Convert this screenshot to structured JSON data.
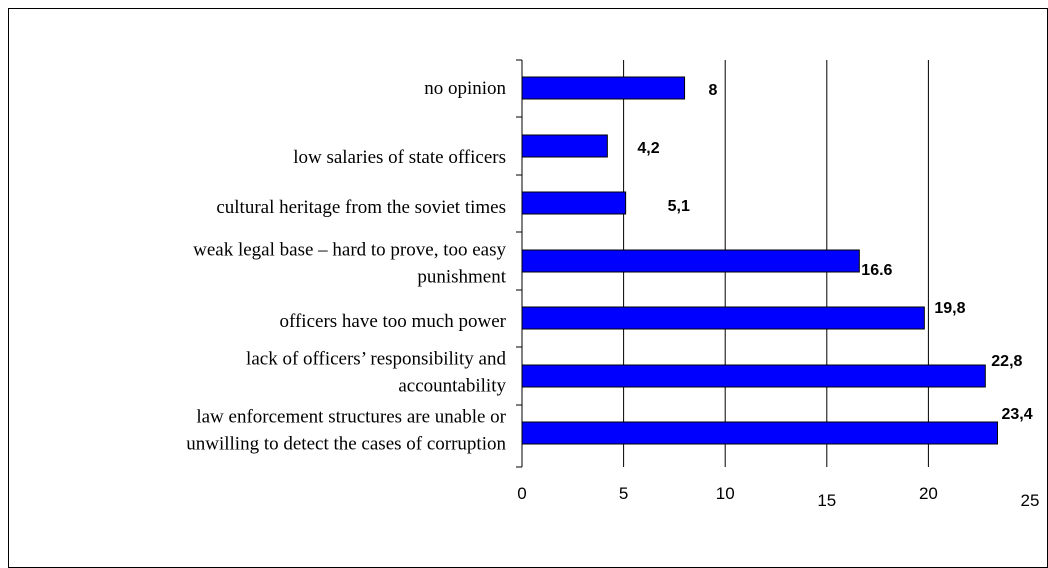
{
  "chart_data": {
    "type": "bar",
    "orientation": "horizontal",
    "categories": [
      [
        "no opinion"
      ],
      [
        "low salaries of state officers"
      ],
      [
        "cultural heritage from the soviet times"
      ],
      [
        "weak legal base – hard to prove, too easy",
        "punishment"
      ],
      [
        "officers have too much power"
      ],
      [
        "lack of officers’ responsibility and",
        "accountability"
      ],
      [
        "law enforcement structures are unable or",
        "unwilling to detect the cases of corruption"
      ]
    ],
    "values": [
      8,
      4.2,
      5.1,
      16.6,
      19.8,
      22.8,
      23.4
    ],
    "data_labels": [
      "8",
      "4,2",
      "5,1",
      "16.6",
      "19,8",
      "22,8",
      "23,4"
    ],
    "xlim": [
      0,
      25
    ],
    "x_ticks": [
      "0",
      "5",
      "10",
      "15",
      "20",
      "25"
    ],
    "bar_color": "#0000ff",
    "grid": true,
    "title": "",
    "xlabel": "",
    "ylabel": ""
  }
}
